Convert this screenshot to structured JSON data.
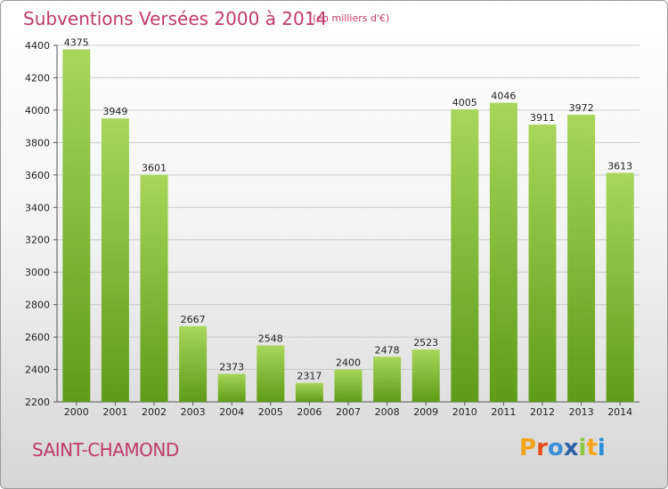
{
  "title": "Subventions Versées 2000 à 2014",
  "subtitle": "(en milliers d'€)",
  "town": "SAINT-CHAMOND",
  "logo": {
    "letters": [
      "P",
      "r",
      "o",
      "x",
      "i",
      "t",
      "i"
    ],
    "colors": [
      "#f5a31a",
      "#e84e1b",
      "#3a8fd6",
      "#2b5fa8",
      "#8dc63f",
      "#f5a31a",
      "#2b8fd6"
    ]
  },
  "colors": {
    "bar_light": "#a8d65a",
    "bar_dark": "#5e9c17",
    "title": "#c0396b",
    "grid": "#cccccc"
  },
  "chart_data": {
    "type": "bar",
    "categories": [
      "2000",
      "2001",
      "2002",
      "2003",
      "2004",
      "2005",
      "2006",
      "2007",
      "2008",
      "2009",
      "2010",
      "2011",
      "2012",
      "2013",
      "2014"
    ],
    "values": [
      4375,
      3949,
      3601,
      2667,
      2373,
      2548,
      2317,
      2400,
      2478,
      2523,
      4005,
      4046,
      3911,
      3972,
      3613
    ],
    "ylim": [
      2200,
      4400
    ],
    "yticks": [
      2200,
      2400,
      2600,
      2800,
      3000,
      3200,
      3400,
      3600,
      3800,
      4000,
      4200,
      4400
    ],
    "grid": true,
    "xlabel": "",
    "ylabel": ""
  }
}
